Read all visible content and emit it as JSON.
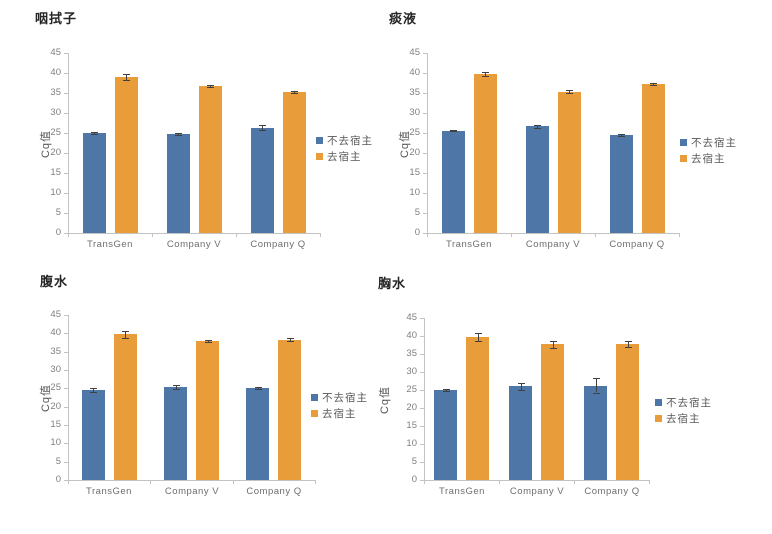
{
  "colors": {
    "series_blue": "#4E76A6",
    "series_orange": "#E99C3A",
    "error_bar": "#404040",
    "axis_line": "#C3C3C3",
    "tick_text": "#7F7F7F",
    "legend_text": "#595959",
    "title_text": "#262626"
  },
  "chart_data": [
    {
      "type": "bar",
      "title": "咽拭子",
      "ylabel": "Cq值",
      "categories": [
        "TransGen",
        "Company V",
        "Company Q"
      ],
      "series": [
        {
          "name": "不去宿主",
          "color": "#4E76A6",
          "values": [
            25.0,
            24.8,
            26.3
          ],
          "errors": [
            0.3,
            0.3,
            0.6
          ]
        },
        {
          "name": "去宿主",
          "color": "#E99C3A",
          "values": [
            39.0,
            36.8,
            35.2
          ],
          "errors": [
            0.8,
            0.3,
            0.3
          ]
        }
      ],
      "ylim": [
        0,
        45
      ],
      "yticks": [
        0,
        5,
        10,
        15,
        20,
        25,
        30,
        35,
        40,
        45
      ],
      "grid": false,
      "legend_position": "right"
    },
    {
      "type": "bar",
      "title": "痰液",
      "ylabel": "Cq值",
      "categories": [
        "TransGen",
        "Company V",
        "Company Q"
      ],
      "series": [
        {
          "name": "不去宿主",
          "color": "#4E76A6",
          "values": [
            25.6,
            26.7,
            24.5
          ],
          "errors": [
            0.2,
            0.4,
            0.2
          ]
        },
        {
          "name": "去宿主",
          "color": "#E99C3A",
          "values": [
            39.8,
            35.3,
            37.2
          ],
          "errors": [
            0.5,
            0.4,
            0.3
          ]
        }
      ],
      "ylim": [
        0,
        45
      ],
      "yticks": [
        0,
        5,
        10,
        15,
        20,
        25,
        30,
        35,
        40,
        45
      ],
      "grid": false,
      "legend_position": "right"
    },
    {
      "type": "bar",
      "title": "腹水",
      "ylabel": "Cq值",
      "categories": [
        "TransGen",
        "Company V",
        "Company Q"
      ],
      "series": [
        {
          "name": "不去宿主",
          "color": "#4E76A6",
          "values": [
            24.6,
            25.3,
            25.0
          ],
          "errors": [
            0.5,
            0.6,
            0.3
          ]
        },
        {
          "name": "去宿主",
          "color": "#E99C3A",
          "values": [
            39.7,
            37.9,
            38.2
          ],
          "errors": [
            0.9,
            0.3,
            0.4
          ]
        }
      ],
      "ylim": [
        0,
        45
      ],
      "yticks": [
        0,
        5,
        10,
        15,
        20,
        25,
        30,
        35,
        40,
        45
      ],
      "grid": false,
      "legend_position": "right"
    },
    {
      "type": "bar",
      "title": "胸水",
      "ylabel": "Cq值",
      "categories": [
        "TransGen",
        "Company V",
        "Company Q"
      ],
      "series": [
        {
          "name": "不去宿主",
          "color": "#4E76A6",
          "values": [
            25.0,
            26.0,
            26.2
          ],
          "errors": [
            0.4,
            1.0,
            2.0
          ]
        },
        {
          "name": "去宿主",
          "color": "#E99C3A",
          "values": [
            39.7,
            37.7,
            37.7
          ],
          "errors": [
            1.1,
            1.0,
            0.8
          ]
        }
      ],
      "ylim": [
        0,
        45
      ],
      "yticks": [
        0,
        5,
        10,
        15,
        20,
        25,
        30,
        35,
        40,
        45
      ],
      "grid": false,
      "legend_position": "right"
    }
  ]
}
